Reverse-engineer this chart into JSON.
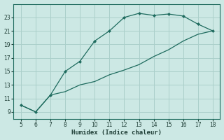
{
  "xlabel": "Humidex (Indice chaleur)",
  "bg_color": "#cce8e4",
  "grid_color": "#aacfca",
  "line_color": "#1e6b5e",
  "xlim": [
    4.5,
    18.5
  ],
  "ylim": [
    8,
    25
  ],
  "xticks": [
    5,
    6,
    7,
    8,
    9,
    10,
    11,
    12,
    13,
    14,
    15,
    16,
    17,
    18
  ],
  "yticks": [
    9,
    11,
    13,
    15,
    17,
    19,
    21,
    23
  ],
  "upper_x": [
    5,
    6,
    7,
    8,
    9,
    10,
    11,
    12,
    13,
    14,
    15,
    16,
    17,
    18
  ],
  "upper_y": [
    10.0,
    9.0,
    11.5,
    15.0,
    16.5,
    19.5,
    21.0,
    23.0,
    23.6,
    23.3,
    23.5,
    23.2,
    22.0,
    21.0
  ],
  "lower_x": [
    5,
    6,
    7,
    8,
    9,
    10,
    11,
    12,
    13,
    14,
    15,
    16,
    17,
    18
  ],
  "lower_y": [
    10.0,
    9.0,
    11.5,
    12.0,
    13.0,
    13.5,
    14.5,
    15.2,
    16.0,
    17.2,
    18.2,
    19.5,
    20.5,
    21.0
  ]
}
